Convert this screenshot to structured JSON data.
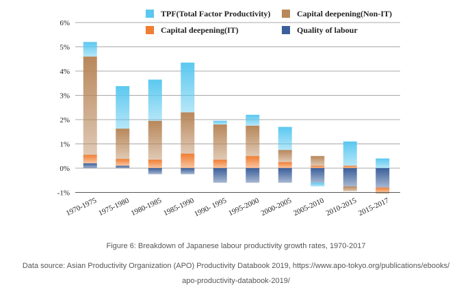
{
  "chart_data": {
    "type": "bar",
    "stacked": true,
    "categories": [
      "1970-1975",
      "1975-1980",
      "1980-1985",
      "1985-1990",
      "1990- 1995",
      "1995-2000",
      "2000-2005",
      "2005-2010",
      "2010-2015",
      "2015-2017"
    ],
    "y_tick_labels": [
      "6%",
      "5%",
      "4%",
      "3%",
      "2%",
      "1%",
      "0%",
      "-1%"
    ],
    "ylim": [
      -1.15,
      6
    ],
    "grid": true,
    "legend_position": "top-right",
    "series": [
      {
        "name": "Quality of labour",
        "color": "#3b5f9a",
        "values": [
          0.2,
          0.1,
          -0.25,
          -0.25,
          -0.6,
          -0.6,
          -0.6,
          -0.6,
          -0.75,
          -0.8
        ]
      },
      {
        "name": "Capital deepening(IT)",
        "color": "#f07e32",
        "values": [
          0.35,
          0.28,
          0.35,
          0.6,
          0.35,
          0.5,
          0.25,
          0.1,
          0.1,
          -0.2
        ]
      },
      {
        "name": "Capital deepening(Non-IT)",
        "color": "#b8875a",
        "values": [
          4.05,
          1.25,
          1.6,
          1.7,
          1.45,
          1.25,
          0.5,
          0.4,
          -0.2,
          -0.05
        ]
      },
      {
        "name": "TPF(Total Factor Productivity)",
        "color": "#5bc8f0",
        "values": [
          0.6,
          1.75,
          1.7,
          2.05,
          0.15,
          0.45,
          0.95,
          -0.15,
          1.0,
          0.4
        ]
      }
    ]
  },
  "legend": {
    "items": [
      {
        "label": "TPF(Total Factor Productivity)",
        "color": "#5bc8f0"
      },
      {
        "label": "Capital deepening(Non-IT)",
        "color": "#b8875a"
      },
      {
        "label": "Capital deepening(IT)",
        "color": "#f07e32"
      },
      {
        "label": "Quality of labour",
        "color": "#3b5f9a"
      }
    ]
  },
  "caption": {
    "figure": "Figure 6: Breakdown of Japanese labour productivity growth rates, 1970-2017",
    "source_line1": "Data source: Asian Productivity Organization (APO) Productivity Databook 2019, https://www.apo-tokyo.org/publications/ebooks/",
    "source_line2": "apo-productivity-databook-2019/"
  }
}
